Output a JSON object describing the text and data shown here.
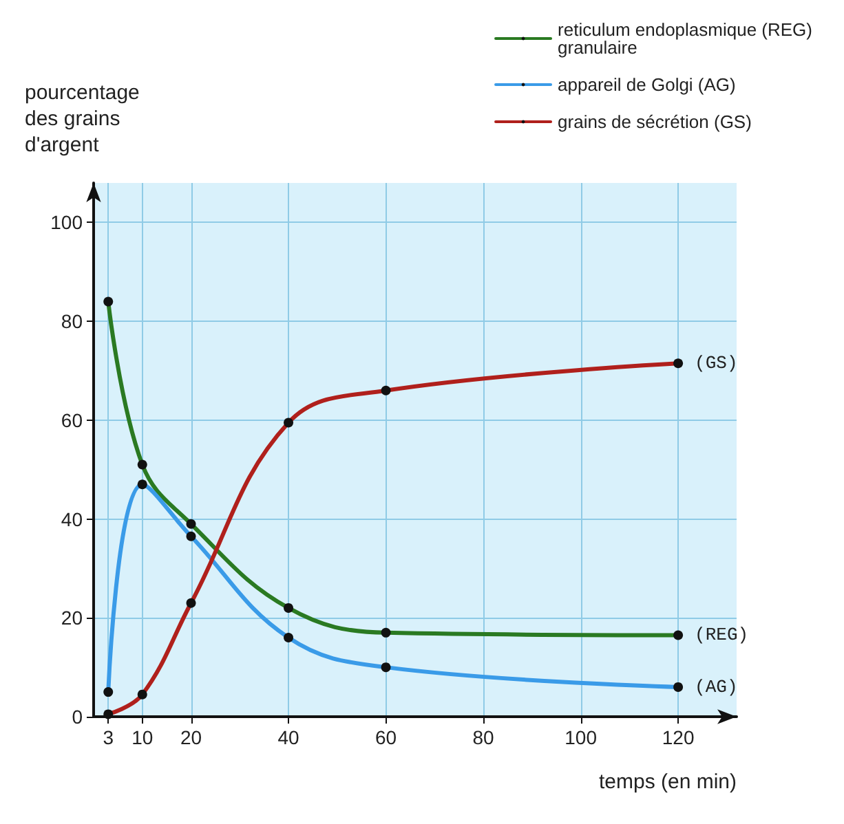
{
  "chart_data": {
    "type": "line",
    "xlabel": "temps (en min)",
    "ylabel": "pourcentage\ndes grains\nd'argent",
    "x": [
      3,
      10,
      20,
      40,
      60,
      120
    ],
    "series": [
      {
        "name": "reticulum endoplasmique (REG)\ngranulaire",
        "color": "#2a7a22",
        "values": [
          84,
          51,
          39,
          22,
          17,
          16.5
        ]
      },
      {
        "name": "appareil de Golgi (AG)",
        "color": "#3a9be8",
        "values": [
          5,
          47,
          36.5,
          16,
          10,
          6
        ]
      },
      {
        "name": "grains de sécrétion (GS)",
        "color": "#b0201c",
        "values": [
          0.5,
          4.5,
          23,
          59.5,
          66,
          71.5
        ]
      }
    ],
    "annotations": [
      "(REG)",
      "(AG)",
      "(GS)"
    ],
    "xlim": [
      0,
      132
    ],
    "xticks": [
      3,
      10,
      20,
      40,
      60,
      80,
      100,
      120
    ],
    "ylim": [
      0,
      108
    ],
    "yticks": [
      0,
      20,
      40,
      60,
      80,
      100
    ],
    "grid": true,
    "legend": "top right",
    "marker": "circle",
    "line_style": "solid"
  }
}
